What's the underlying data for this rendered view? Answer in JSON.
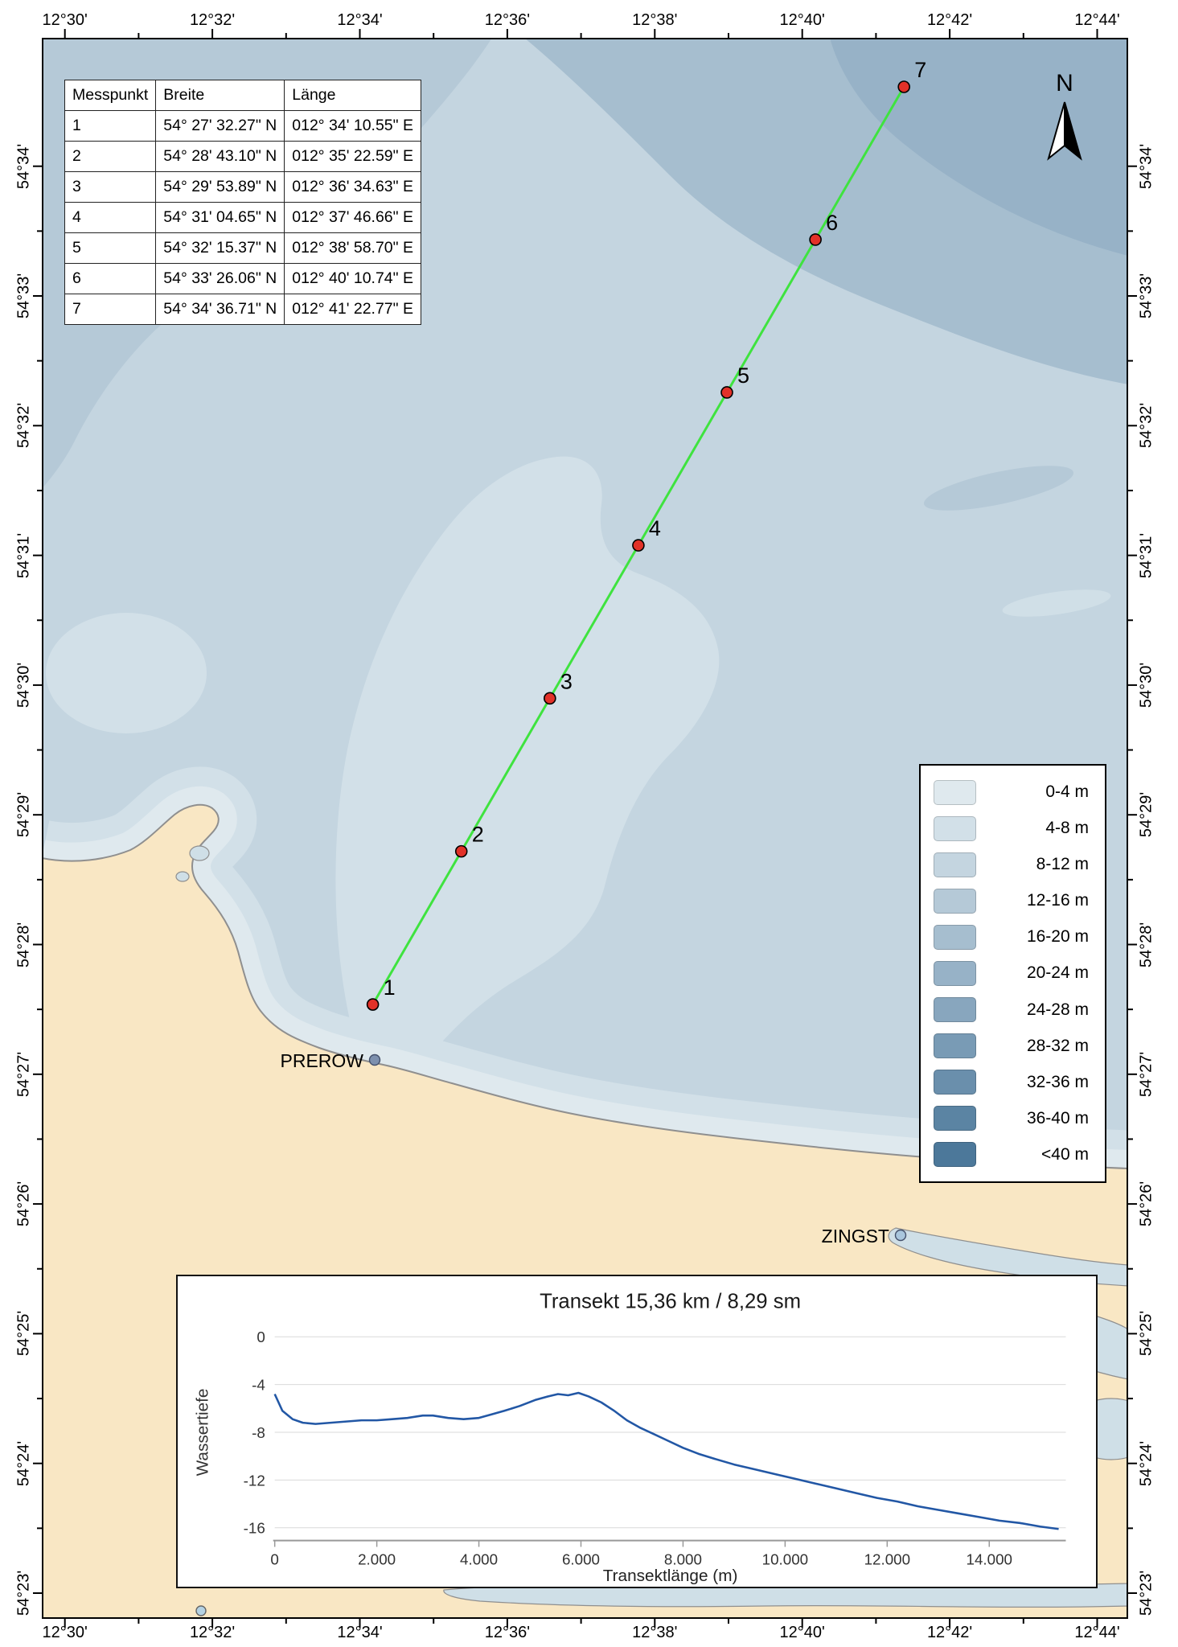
{
  "grid": {
    "lon": [
      {
        "label": "12°30'",
        "min": 30
      },
      {
        "label": "12°32'",
        "min": 32
      },
      {
        "label": "12°34'",
        "min": 34
      },
      {
        "label": "12°36'",
        "min": 36
      },
      {
        "label": "12°38'",
        "min": 38
      },
      {
        "label": "12°40'",
        "min": 40
      },
      {
        "label": "12°42'",
        "min": 42
      },
      {
        "label": "12°44'",
        "min": 44
      }
    ],
    "lat": [
      {
        "label": "54°34'",
        "min": 34
      },
      {
        "label": "54°33'",
        "min": 33
      },
      {
        "label": "54°32'",
        "min": 32
      },
      {
        "label": "54°31'",
        "min": 31
      },
      {
        "label": "54°30'",
        "min": 30
      },
      {
        "label": "54°29'",
        "min": 29
      },
      {
        "label": "54°28'",
        "min": 28
      },
      {
        "label": "54°27'",
        "min": 27
      },
      {
        "label": "54°26'",
        "min": 26
      },
      {
        "label": "54°25'",
        "min": 25
      },
      {
        "label": "54°24'",
        "min": 24
      },
      {
        "label": "54°23'",
        "min": 23
      }
    ]
  },
  "table": {
    "headers": [
      "Messpunkt",
      "Breite",
      "Länge"
    ],
    "rows": [
      [
        "1",
        "54° 27' 32.27\" N",
        "012° 34' 10.55\" E"
      ],
      [
        "2",
        "54° 28' 43.10\" N",
        "012° 35' 22.59\" E"
      ],
      [
        "3",
        "54° 29' 53.89\" N",
        "012° 36' 34.63\" E"
      ],
      [
        "4",
        "54° 31' 04.65\" N",
        "012° 37' 46.66\" E"
      ],
      [
        "5",
        "54° 32' 15.37\" N",
        "012° 38' 58.70\" E"
      ],
      [
        "6",
        "54° 33' 26.06\" N",
        "012° 40' 10.74\" E"
      ],
      [
        "7",
        "54° 34' 36.71\" N",
        "012° 41' 22.77\" E"
      ]
    ]
  },
  "north": {
    "label": "N"
  },
  "towns": [
    {
      "name": "PREROW"
    },
    {
      "name": "ZINGST"
    }
  ],
  "legend": {
    "items": [
      {
        "label": "0-4 m",
        "color": "#dfe9ee"
      },
      {
        "label": "4-8 m",
        "color": "#d2e0e8"
      },
      {
        "label": "8-12 m",
        "color": "#c4d5e0"
      },
      {
        "label": "12-16 m",
        "color": "#b5c9d7"
      },
      {
        "label": "16-20 m",
        "color": "#a6becf"
      },
      {
        "label": "20-24 m",
        "color": "#97b2c7"
      },
      {
        "label": "24-28 m",
        "color": "#88a6be"
      },
      {
        "label": "28-32 m",
        "color": "#799bb5"
      },
      {
        "label": "32-36 m",
        "color": "#6a8fac"
      },
      {
        "label": "36-40 m",
        "color": "#5b84a3"
      },
      {
        "label": "<40 m",
        "color": "#4c789a"
      }
    ]
  },
  "map_colors": {
    "transect_line": "#3fe33f",
    "point_fill": "#e23128",
    "land": "#f9e7c4",
    "inland_water": "#cfdfe7"
  },
  "chart_data": {
    "type": "line",
    "title": "Transekt 15,36 km / 8,29 sm",
    "xlabel": "Transektlänge (m)",
    "ylabel": "Wassertiefe",
    "xlim": [
      0,
      15500
    ],
    "ylim": [
      -17,
      0
    ],
    "grid": "horizontal",
    "legend_position": "none",
    "xticks": [
      {
        "v": 0,
        "label": "0"
      },
      {
        "v": 2000,
        "label": "2.000"
      },
      {
        "v": 4000,
        "label": "4.000"
      },
      {
        "v": 6000,
        "label": "6.000"
      },
      {
        "v": 8000,
        "label": "8.000"
      },
      {
        "v": 10000,
        "label": "10.000"
      },
      {
        "v": 12000,
        "label": "12.000"
      },
      {
        "v": 14000,
        "label": "14.000"
      }
    ],
    "yticks": [
      {
        "v": 0,
        "label": "0"
      },
      {
        "v": -4,
        "label": "-4"
      },
      {
        "v": -8,
        "label": "-8"
      },
      {
        "v": -12,
        "label": "-12"
      },
      {
        "v": -16,
        "label": "-16"
      }
    ],
    "x": [
      0,
      150,
      350,
      550,
      800,
      1100,
      1400,
      1700,
      2000,
      2300,
      2600,
      2900,
      3100,
      3400,
      3700,
      4000,
      4250,
      4500,
      4800,
      5100,
      5350,
      5550,
      5750,
      5950,
      6150,
      6400,
      6650,
      6900,
      7150,
      7400,
      7700,
      8000,
      8300,
      8600,
      9000,
      9400,
      9800,
      10200,
      10600,
      11000,
      11400,
      11800,
      12200,
      12600,
      13000,
      13400,
      13800,
      14200,
      14600,
      15000,
      15360
    ],
    "y": [
      -4.8,
      -6.2,
      -6.9,
      -7.2,
      -7.3,
      -7.2,
      -7.1,
      -7.0,
      -7.0,
      -6.9,
      -6.8,
      -6.6,
      -6.6,
      -6.8,
      -6.9,
      -6.8,
      -6.5,
      -6.2,
      -5.8,
      -5.3,
      -5.0,
      -4.8,
      -4.9,
      -4.7,
      -5.0,
      -5.5,
      -6.2,
      -7.0,
      -7.6,
      -8.1,
      -8.7,
      -9.3,
      -9.8,
      -10.2,
      -10.7,
      -11.1,
      -11.5,
      -11.9,
      -12.3,
      -12.7,
      -13.1,
      -13.5,
      -13.8,
      -14.2,
      -14.5,
      -14.8,
      -15.1,
      -15.4,
      -15.6,
      -15.9,
      -16.1
    ]
  }
}
